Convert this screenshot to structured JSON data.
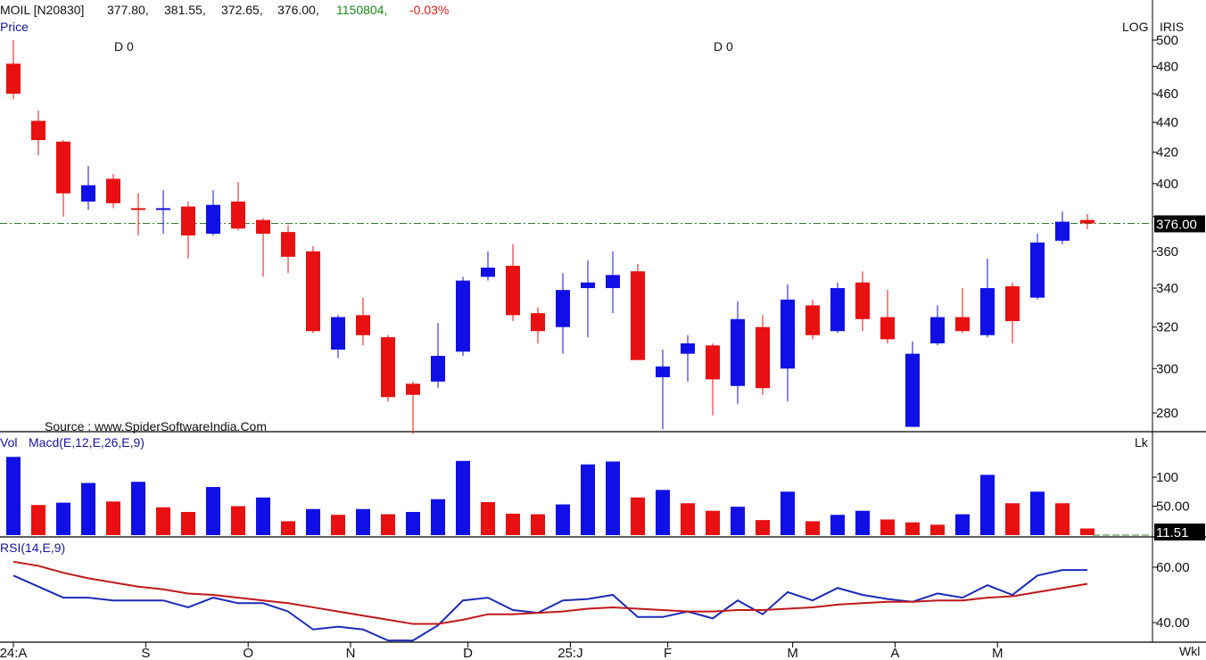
{
  "header": {
    "symbol": "MOIL [N20830]",
    "open": "377.80,",
    "high": "381.55,",
    "low": "372.65,",
    "close": "376.00,",
    "volume": "1150804,",
    "change": "-0.03%",
    "price_label": "Price",
    "log_label": "LOG",
    "iris_label": "IRIS",
    "d0_a": "D 0",
    "d0_b": "D 0",
    "source": "Source : www.SpiderSoftwareIndia.Com",
    "last_price": "376.00"
  },
  "colors": {
    "up": "#1010e6",
    "down": "#e81010",
    "macd_signal": "#c01818",
    "rsi": "#1c2ab8"
  },
  "chart_data": [
    {
      "type": "candlestick",
      "title": "MOIL [N20830]",
      "ylabel": "Price",
      "scale": "log",
      "ylim": [
        270,
        505
      ],
      "y_ticks": [
        "280",
        "300",
        "320",
        "340",
        "360",
        "380",
        "400",
        "420",
        "440",
        "460",
        "480",
        "500"
      ],
      "reference_line": 376.0,
      "candles": [
        {
          "o": 482,
          "h": 500,
          "l": 456,
          "c": 460,
          "dir": "down"
        },
        {
          "o": 441,
          "h": 448,
          "l": 418,
          "c": 428,
          "dir": "down"
        },
        {
          "o": 427,
          "h": 428,
          "l": 380,
          "c": 394,
          "dir": "down"
        },
        {
          "o": 389,
          "h": 411,
          "l": 384,
          "c": 399,
          "dir": "up"
        },
        {
          "o": 403,
          "h": 406,
          "l": 385,
          "c": 388,
          "dir": "down"
        },
        {
          "o": 385,
          "h": 394,
          "l": 369,
          "c": 384,
          "dir": "down"
        },
        {
          "o": 384,
          "h": 396,
          "l": 370,
          "c": 385,
          "dir": "up"
        },
        {
          "o": 386,
          "h": 389,
          "l": 356,
          "c": 369,
          "dir": "down"
        },
        {
          "o": 370,
          "h": 396,
          "l": 369,
          "c": 387,
          "dir": "up"
        },
        {
          "o": 389,
          "h": 401,
          "l": 372,
          "c": 373,
          "dir": "down"
        },
        {
          "o": 378,
          "h": 379,
          "l": 346,
          "c": 370,
          "dir": "down"
        },
        {
          "o": 371,
          "h": 375,
          "l": 348,
          "c": 357,
          "dir": "down"
        },
        {
          "o": 360,
          "h": 363,
          "l": 317,
          "c": 318,
          "dir": "down"
        },
        {
          "o": 309,
          "h": 326,
          "l": 305,
          "c": 325,
          "dir": "up"
        },
        {
          "o": 326,
          "h": 335,
          "l": 311,
          "c": 316,
          "dir": "down"
        },
        {
          "o": 315,
          "h": 316,
          "l": 285,
          "c": 287,
          "dir": "down"
        },
        {
          "o": 293,
          "h": 294,
          "l": 271,
          "c": 288,
          "dir": "down"
        },
        {
          "o": 294,
          "h": 322,
          "l": 291,
          "c": 306,
          "dir": "up"
        },
        {
          "o": 308,
          "h": 346,
          "l": 306,
          "c": 344,
          "dir": "up"
        },
        {
          "o": 346,
          "h": 360,
          "l": 344,
          "c": 351,
          "dir": "up"
        },
        {
          "o": 352,
          "h": 364,
          "l": 323,
          "c": 326,
          "dir": "down"
        },
        {
          "o": 327,
          "h": 330,
          "l": 312,
          "c": 318,
          "dir": "down"
        },
        {
          "o": 320,
          "h": 348,
          "l": 307,
          "c": 339,
          "dir": "up"
        },
        {
          "o": 340,
          "h": 355,
          "l": 315,
          "c": 343,
          "dir": "up"
        },
        {
          "o": 340,
          "h": 360,
          "l": 327,
          "c": 347,
          "dir": "up"
        },
        {
          "o": 349,
          "h": 353,
          "l": 304,
          "c": 304,
          "dir": "down"
        },
        {
          "o": 296,
          "h": 309,
          "l": 273,
          "c": 301,
          "dir": "up"
        },
        {
          "o": 307,
          "h": 316,
          "l": 294,
          "c": 312,
          "dir": "up"
        },
        {
          "o": 311,
          "h": 312,
          "l": 279,
          "c": 295,
          "dir": "down"
        },
        {
          "o": 292,
          "h": 333,
          "l": 284,
          "c": 324,
          "dir": "up"
        },
        {
          "o": 320,
          "h": 326,
          "l": 288,
          "c": 291,
          "dir": "down"
        },
        {
          "o": 300,
          "h": 342,
          "l": 285,
          "c": 334,
          "dir": "up"
        },
        {
          "o": 331,
          "h": 334,
          "l": 314,
          "c": 316,
          "dir": "down"
        },
        {
          "o": 318,
          "h": 343,
          "l": 317,
          "c": 340,
          "dir": "up"
        },
        {
          "o": 343,
          "h": 349,
          "l": 318,
          "c": 324,
          "dir": "down"
        },
        {
          "o": 325,
          "h": 339,
          "l": 312,
          "c": 314,
          "dir": "down"
        },
        {
          "o": 274,
          "h": 313,
          "l": 274,
          "c": 307,
          "dir": "up"
        },
        {
          "o": 312,
          "h": 331,
          "l": 311,
          "c": 325,
          "dir": "up"
        },
        {
          "o": 325,
          "h": 340,
          "l": 317,
          "c": 318,
          "dir": "down"
        },
        {
          "o": 316,
          "h": 356,
          "l": 315,
          "c": 340,
          "dir": "up"
        },
        {
          "o": 341,
          "h": 343,
          "l": 312,
          "c": 323,
          "dir": "down"
        },
        {
          "o": 335,
          "h": 370,
          "l": 334,
          "c": 365,
          "dir": "up"
        },
        {
          "o": 366,
          "h": 383,
          "l": 364,
          "c": 377,
          "dir": "up"
        },
        {
          "o": 378,
          "h": 381.55,
          "l": 372.65,
          "c": 376,
          "dir": "down"
        }
      ]
    },
    {
      "type": "bar",
      "title": "Vol",
      "ylabel": "Lk",
      "y_ticks": [
        "50.00",
        "100"
      ],
      "last_value": "11.51",
      "values": [
        135,
        52,
        56,
        90,
        58,
        92,
        48,
        40,
        83,
        50,
        65,
        24,
        45,
        35,
        45,
        36,
        40,
        62,
        128,
        57,
        37,
        36,
        53,
        122,
        127,
        65,
        78,
        55,
        42,
        49,
        26,
        75,
        24,
        35,
        42,
        27,
        22,
        18,
        36,
        104,
        55,
        75,
        55,
        11.51
      ],
      "dirs": [
        "up",
        "down",
        "up",
        "up",
        "down",
        "up",
        "down",
        "down",
        "up",
        "down",
        "up",
        "down",
        "up",
        "down",
        "up",
        "down",
        "up",
        "up",
        "up",
        "down",
        "down",
        "down",
        "up",
        "up",
        "up",
        "down",
        "up",
        "down",
        "down",
        "up",
        "down",
        "up",
        "down",
        "up",
        "up",
        "down",
        "down",
        "down",
        "up",
        "up",
        "down",
        "up",
        "down",
        "down"
      ]
    },
    {
      "type": "line",
      "title": "Macd(E,12,E,26,E,9)"
    },
    {
      "type": "line",
      "title": "RSI(14,E,9)",
      "ylim": [
        34,
        64
      ],
      "y_ticks": [
        "40.00",
        "60.00"
      ],
      "series": [
        {
          "values": [
            57,
            53,
            49,
            49,
            48,
            48,
            48,
            45.5,
            49,
            47,
            47,
            44,
            37.5,
            38.5,
            37.5,
            33.5,
            33.5,
            39,
            48,
            49,
            44.5,
            43.5,
            48,
            48.5,
            50,
            42,
            42,
            44,
            41.5,
            48,
            43,
            51,
            48,
            52.5,
            50,
            48.5,
            47.5,
            50.5,
            49,
            53.5,
            50,
            57,
            59,
            59
          ]
        },
        {
          "values": [
            62,
            60.5,
            58,
            56,
            54.5,
            53,
            52,
            50.5,
            50,
            49,
            48,
            47,
            45.5,
            44,
            42.5,
            41,
            39.5,
            39.5,
            41,
            43,
            43,
            43.5,
            44,
            45,
            45.5,
            45,
            44.5,
            44,
            44,
            44.5,
            44.5,
            45,
            45.5,
            46.5,
            47,
            47.5,
            47.5,
            48,
            48,
            49,
            49.5,
            51,
            52.5,
            54
          ]
        }
      ]
    }
  ],
  "x_axis": {
    "labels": [
      {
        "text": "24:A",
        "idx": 0
      },
      {
        "text": "S",
        "idx": 5.3
      },
      {
        "text": "O",
        "idx": 9.4
      },
      {
        "text": "N",
        "idx": 13.5
      },
      {
        "text": "D",
        "idx": 18.2
      },
      {
        "text": "25:J",
        "idx": 22.3
      },
      {
        "text": "F",
        "idx": 26.2
      },
      {
        "text": "M",
        "idx": 31.2
      },
      {
        "text": "A",
        "idx": 35.3
      },
      {
        "text": "M",
        "idx": 39.4
      }
    ],
    "period_label": "Wkl"
  }
}
